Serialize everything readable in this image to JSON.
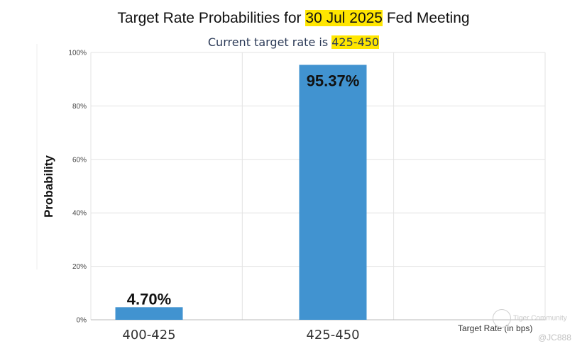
{
  "title": {
    "prefix": "Target Rate Probabilities for ",
    "date": "30 Jul 2025",
    "suffix": " Fed Meeting"
  },
  "subtitle": {
    "prefix": "Current target rate is ",
    "rate": "425-450"
  },
  "chart_data": {
    "type": "bar",
    "categories": [
      "400-425",
      "425-450"
    ],
    "values": [
      4.7,
      95.37
    ],
    "data_labels": [
      "4.70%",
      "95.37%"
    ],
    "xlabel": "Target Rate (in bps)",
    "ylabel": "Probability",
    "ylim": [
      0,
      100
    ],
    "yticks": [
      "0%",
      "20%",
      "40%",
      "60%",
      "80%",
      "100%"
    ],
    "grid": true,
    "bar_color": "#4193d0"
  },
  "watermark": {
    "brand": "Tiger Community",
    "user": "@JC888"
  }
}
